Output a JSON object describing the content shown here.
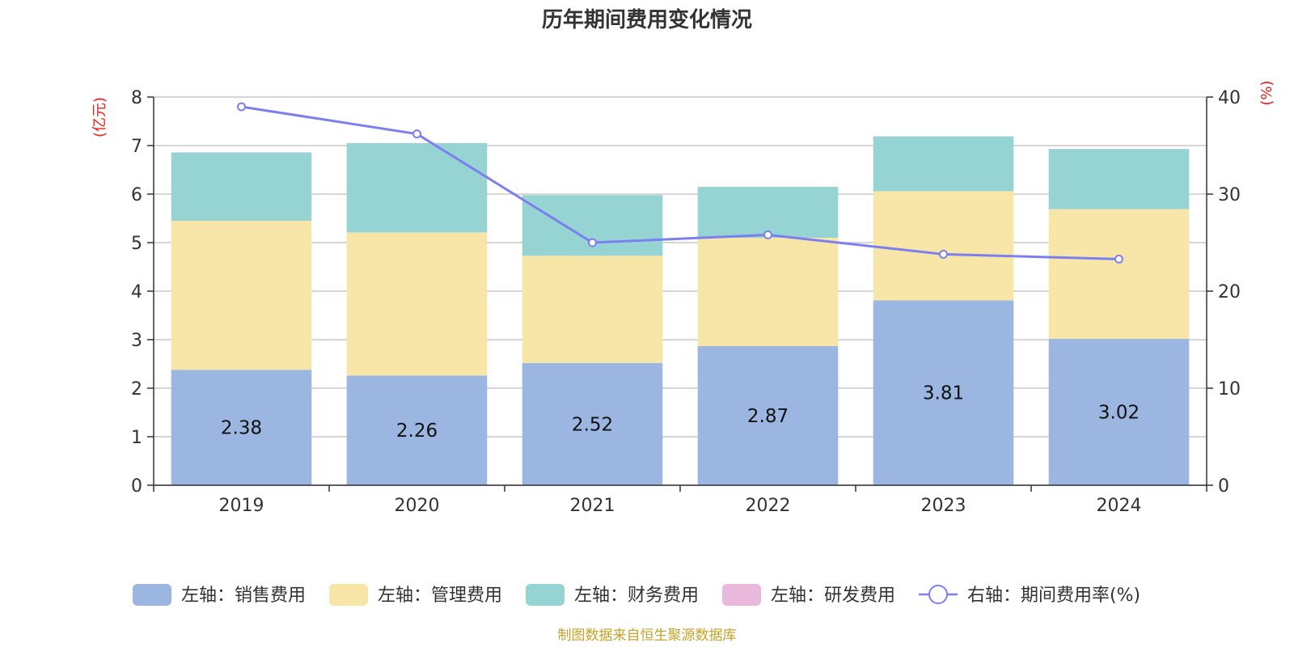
{
  "chart_data": {
    "type": "bar",
    "title": "历年期间费用变化情况",
    "categories": [
      "2019",
      "2020",
      "2021",
      "2022",
      "2023",
      "2024"
    ],
    "left_axis": {
      "unit": "(亿元)",
      "ylim": [
        0,
        8
      ],
      "ticks": [
        "0",
        "1",
        "2",
        "3",
        "4",
        "5",
        "6",
        "7",
        "8"
      ]
    },
    "right_axis": {
      "unit": "(%)",
      "ylim": [
        0,
        40
      ],
      "ticks": [
        "0",
        "10",
        "20",
        "30",
        "40"
      ]
    },
    "series": [
      {
        "name": "左轴：销售费用",
        "type": "bar",
        "axis": "left",
        "color": "#9bb6e0",
        "values": [
          2.38,
          2.26,
          2.52,
          2.87,
          3.81,
          3.02
        ],
        "labels": [
          "2.38",
          "2.26",
          "2.52",
          "2.87",
          "3.81",
          "3.02"
        ]
      },
      {
        "name": "左轴：管理费用",
        "type": "bar",
        "axis": "left",
        "color": "#f7e6a7",
        "values": [
          3.07,
          2.95,
          2.21,
          2.23,
          2.25,
          2.67
        ]
      },
      {
        "name": "左轴：财务费用",
        "type": "bar",
        "axis": "left",
        "color": "#96d4d4",
        "values": [
          1.41,
          1.84,
          1.25,
          1.05,
          1.13,
          1.24
        ]
      },
      {
        "name": "左轴：研发费用",
        "type": "bar",
        "axis": "left",
        "color": "#e9b8da",
        "values": [
          0,
          0,
          0,
          0,
          0,
          0
        ]
      },
      {
        "name": "右轴：期间费用率(%)",
        "type": "line",
        "axis": "right",
        "color": "#7b7ff0",
        "values": [
          39.0,
          36.2,
          25.0,
          25.8,
          23.8,
          23.3
        ]
      }
    ],
    "grid": true,
    "legend_position": "bottom"
  },
  "source_note": "制图数据来自恒生聚源数据库"
}
